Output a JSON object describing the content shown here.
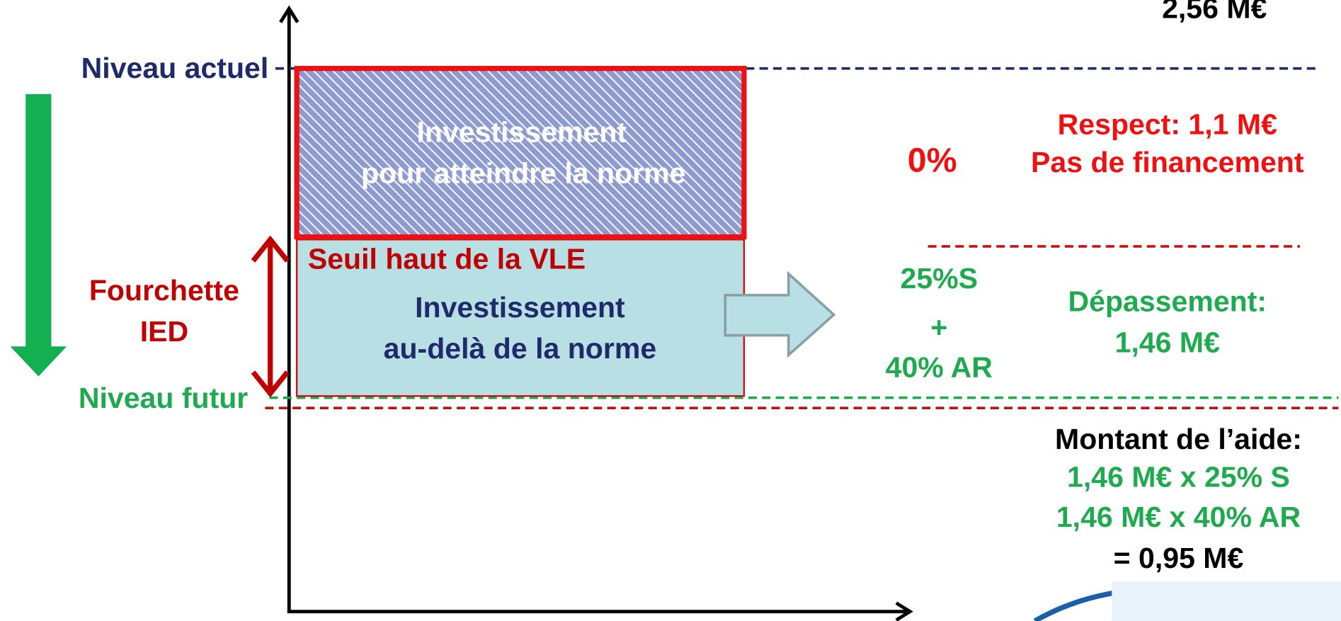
{
  "top_right_amount": "2,56 M€",
  "levels": {
    "current": "Niveau actuel",
    "future": "Niveau futur"
  },
  "range": {
    "lines": [
      "Fourchette",
      "IED"
    ]
  },
  "upper_box": {
    "lines": [
      "Investissement",
      "pour atteindre la norme"
    ]
  },
  "lower_box": {
    "threshold": "Seuil haut de la VLE",
    "lines": [
      "Investissement",
      "au-delà de la norme"
    ]
  },
  "respect": {
    "rate": "0%",
    "lines": [
      "Respect: 1,1 M€",
      "Pas de financement"
    ]
  },
  "excess": {
    "rate_lines": [
      "25%S",
      "+",
      "40% AR"
    ],
    "lines": [
      "Dépassement:",
      "1,46 M€"
    ]
  },
  "aid": {
    "title": "Montant de l’aide:",
    "lines": [
      "1,46 M€ x 25% S",
      "1,46 M€ x 40% AR"
    ],
    "total": "= 0,95 M€"
  }
}
